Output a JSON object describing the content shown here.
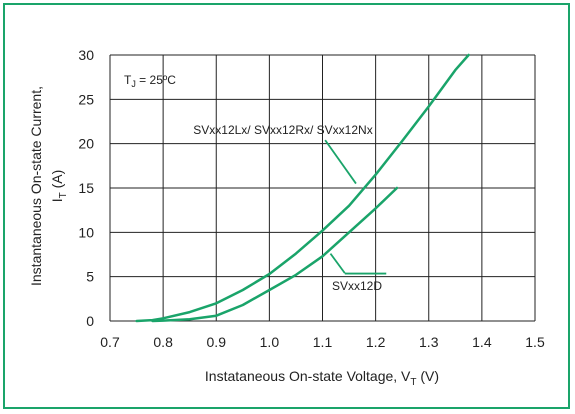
{
  "chart_data": {
    "type": "line",
    "title": "",
    "xlabel": {
      "text": "Instataneous On-state Voltage, V",
      "subscript": "T",
      "suffix": " (V)"
    },
    "ylabel": {
      "line1": "Instantaneous On-state Current,",
      "line2_text": "I",
      "line2_subscript": "T",
      "line2_suffix": " (A)"
    },
    "xlim": [
      0.7,
      1.5
    ],
    "ylim": [
      0,
      30
    ],
    "x_ticks": [
      "0.7",
      "0.8",
      "0.9",
      "1.0",
      "1.1",
      "1.2",
      "1.3",
      "1.4",
      "1.5"
    ],
    "y_ticks": [
      "0",
      "5",
      "10",
      "15",
      "20",
      "25",
      "30"
    ],
    "grid": true,
    "condition": {
      "text": "T",
      "subscript": "J",
      "suffix": " = 25ºC"
    },
    "line_color": "#1aa46a",
    "frame_color": "#1aa46a",
    "series": [
      {
        "name": "SVxx12Lx/ SVxx12Rx/ SVxx12Nx",
        "x": [
          0.75,
          0.78,
          0.8,
          0.85,
          0.9,
          0.95,
          1.0,
          1.05,
          1.1,
          1.15,
          1.2,
          1.25,
          1.3,
          1.35,
          1.375
        ],
        "y": [
          0.0,
          0.1,
          0.3,
          1.0,
          2.0,
          3.5,
          5.3,
          7.6,
          10.2,
          13.0,
          16.5,
          20.3,
          24.2,
          28.3,
          30.0
        ]
      },
      {
        "name": "SVxx12D",
        "x": [
          0.78,
          0.8,
          0.85,
          0.9,
          0.95,
          1.0,
          1.05,
          1.1,
          1.15,
          1.2,
          1.24
        ],
        "y": [
          0.0,
          0.05,
          0.2,
          0.6,
          1.8,
          3.5,
          5.2,
          7.3,
          10.0,
          12.7,
          15.0
        ]
      }
    ],
    "annotations": [
      {
        "id": "annotation-lx",
        "text": "SVxx12Lx/ SVxx12Rx/ SVxx12Nx",
        "series": 0
      },
      {
        "id": "annotation-d",
        "text": "SVxx12D",
        "series": 1
      }
    ]
  }
}
